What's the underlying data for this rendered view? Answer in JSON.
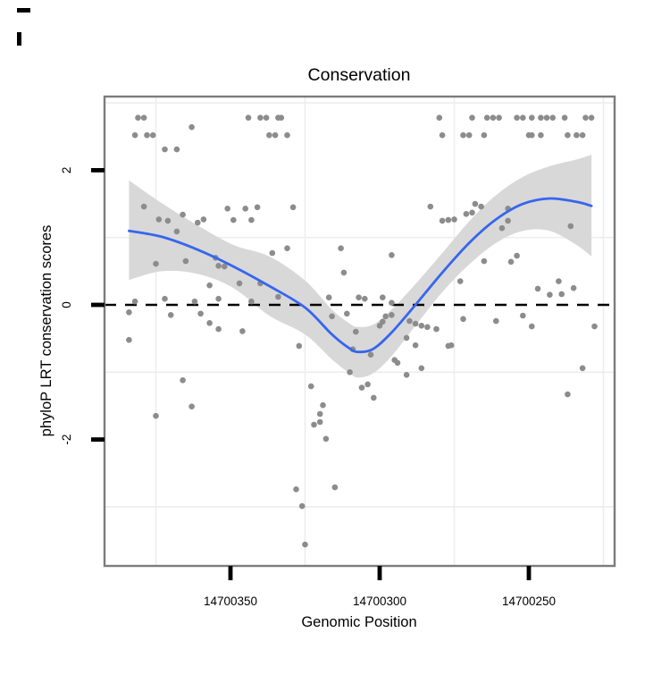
{
  "title": "Conservation",
  "chart_data": {
    "type": "scatter",
    "title": "Conservation",
    "xlabel": "Genomic Position",
    "ylabel": "phyloP LRT conservation scores",
    "x_reversed": true,
    "x_ticks": [
      14700350,
      14700300,
      14700250
    ],
    "x_tick_labels": [
      "14700350",
      "14700300",
      "14700250"
    ],
    "x_minor_ticks": [
      14700375,
      14700325,
      14700275,
      14700225
    ],
    "y_ticks": [
      2,
      0,
      -2
    ],
    "y_tick_labels": [
      "2",
      "0",
      "-2"
    ],
    "y_minor_ticks": [
      3,
      1,
      -1,
      -3
    ],
    "x_range_left_to_right": [
      14700392,
      14700221
    ],
    "y_range": [
      3.1,
      -3.9
    ],
    "hline": 0,
    "grid": "minor-only",
    "legend": "none",
    "colors": {
      "point": "#8c8c8c",
      "smooth_line": "#3666EE",
      "ribbon": "#d8d8d8",
      "dashed_line": "#000000",
      "panel_border": "#7c7c7c",
      "grid_line": "#ededed",
      "tick": "#000000",
      "background": "#ffffff"
    },
    "points": [
      [
        14700381,
        2.78
      ],
      [
        14700379,
        2.78
      ],
      [
        14700344,
        2.78
      ],
      [
        14700340,
        2.78
      ],
      [
        14700338,
        2.78
      ],
      [
        14700334,
        2.78
      ],
      [
        14700333,
        2.78
      ],
      [
        14700280,
        2.78
      ],
      [
        14700269,
        2.78
      ],
      [
        14700264,
        2.78
      ],
      [
        14700262,
        2.78
      ],
      [
        14700260,
        2.78
      ],
      [
        14700254,
        2.78
      ],
      [
        14700252,
        2.78
      ],
      [
        14700249,
        2.78
      ],
      [
        14700246,
        2.78
      ],
      [
        14700244,
        2.78
      ],
      [
        14700242,
        2.78
      ],
      [
        14700238,
        2.78
      ],
      [
        14700231,
        2.78
      ],
      [
        14700229,
        2.78
      ],
      [
        14700363,
        2.64
      ],
      [
        14700382,
        2.52
      ],
      [
        14700378,
        2.52
      ],
      [
        14700376,
        2.52
      ],
      [
        14700337,
        2.52
      ],
      [
        14700335,
        2.52
      ],
      [
        14700331,
        2.52
      ],
      [
        14700279,
        2.52
      ],
      [
        14700272,
        2.52
      ],
      [
        14700270,
        2.52
      ],
      [
        14700265,
        2.52
      ],
      [
        14700250,
        2.52
      ],
      [
        14700249,
        2.52
      ],
      [
        14700246,
        2.52
      ],
      [
        14700237,
        2.52
      ],
      [
        14700234,
        2.52
      ],
      [
        14700232,
        2.52
      ],
      [
        14700372,
        2.31
      ],
      [
        14700368,
        2.31
      ],
      [
        14700379,
        1.46
      ],
      [
        14700374,
        1.27
      ],
      [
        14700371,
        1.25
      ],
      [
        14700366,
        1.34
      ],
      [
        14700368,
        1.09
      ],
      [
        14700361,
        1.22
      ],
      [
        14700359,
        1.27
      ],
      [
        14700351,
        1.43
      ],
      [
        14700345,
        1.43
      ],
      [
        14700341,
        1.45
      ],
      [
        14700349,
        1.26
      ],
      [
        14700343,
        1.26
      ],
      [
        14700329,
        1.45
      ],
      [
        14700283,
        1.46
      ],
      [
        14700279,
        1.25
      ],
      [
        14700277,
        1.26
      ],
      [
        14700275,
        1.27
      ],
      [
        14700268,
        1.5
      ],
      [
        14700266,
        1.46
      ],
      [
        14700271,
        1.35
      ],
      [
        14700269,
        1.37
      ],
      [
        14700257,
        1.43
      ],
      [
        14700257,
        1.25
      ],
      [
        14700259,
        1.14
      ],
      [
        14700236,
        1.17
      ],
      [
        14700375,
        0.61
      ],
      [
        14700365,
        0.65
      ],
      [
        14700355,
        0.7
      ],
      [
        14700354,
        0.58
      ],
      [
        14700352,
        0.57
      ],
      [
        14700357,
        0.29
      ],
      [
        14700347,
        0.32
      ],
      [
        14700340,
        0.32
      ],
      [
        14700336,
        0.77
      ],
      [
        14700331,
        0.84
      ],
      [
        14700313,
        0.84
      ],
      [
        14700296,
        0.74
      ],
      [
        14700312,
        0.48
      ],
      [
        14700265,
        0.65
      ],
      [
        14700256,
        0.64
      ],
      [
        14700254,
        0.73
      ],
      [
        14700273,
        0.35
      ],
      [
        14700247,
        0.24
      ],
      [
        14700243,
        0.15
      ],
      [
        14700240,
        0.35
      ],
      [
        14700239,
        0.16
      ],
      [
        14700235,
        0.25
      ],
      [
        14700384,
        -0.11
      ],
      [
        14700382,
        0.05
      ],
      [
        14700372,
        0.09
      ],
      [
        14700370,
        -0.15
      ],
      [
        14700362,
        0.05
      ],
      [
        14700360,
        -0.13
      ],
      [
        14700357,
        -0.27
      ],
      [
        14700354,
        0.09
      ],
      [
        14700354,
        -0.36
      ],
      [
        14700346,
        -0.39
      ],
      [
        14700343,
        0.05
      ],
      [
        14700334,
        0.12
      ],
      [
        14700317,
        0.11
      ],
      [
        14700307,
        0.11
      ],
      [
        14700305,
        0.09
      ],
      [
        14700299,
        0.11
      ],
      [
        14700296,
        0.03
      ],
      [
        14700316,
        -0.17
      ],
      [
        14700311,
        -0.13
      ],
      [
        14700308,
        -0.4
      ],
      [
        14700300,
        -0.31
      ],
      [
        14700299,
        -0.25
      ],
      [
        14700298,
        -0.17
      ],
      [
        14700296,
        -0.15
      ],
      [
        14700290,
        -0.24
      ],
      [
        14700288,
        -0.28
      ],
      [
        14700286,
        -0.31
      ],
      [
        14700284,
        -0.33
      ],
      [
        14700281,
        -0.36
      ],
      [
        14700291,
        -0.49
      ],
      [
        14700288,
        -0.6
      ],
      [
        14700327,
        -0.61
      ],
      [
        14700309,
        -0.66
      ],
      [
        14700303,
        -0.74
      ],
      [
        14700295,
        -0.82
      ],
      [
        14700294,
        -0.86
      ],
      [
        14700310,
        -1.0
      ],
      [
        14700291,
        -1.04
      ],
      [
        14700286,
        -0.94
      ],
      [
        14700276,
        -0.6
      ],
      [
        14700272,
        -0.21
      ],
      [
        14700261,
        -0.24
      ],
      [
        14700252,
        -0.16
      ],
      [
        14700249,
        -0.32
      ],
      [
        14700228,
        -0.32
      ],
      [
        14700277,
        -0.61
      ],
      [
        14700384,
        -0.52
      ],
      [
        14700232,
        -0.94
      ],
      [
        14700237,
        -1.33
      ],
      [
        14700323,
        -1.21
      ],
      [
        14700306,
        -1.23
      ],
      [
        14700304,
        -1.18
      ],
      [
        14700302,
        -1.38
      ],
      [
        14700319,
        -1.49
      ],
      [
        14700320,
        -1.62
      ],
      [
        14700322,
        -1.78
      ],
      [
        14700320,
        -1.74
      ],
      [
        14700318,
        -1.99
      ],
      [
        14700366,
        -1.12
      ],
      [
        14700363,
        -1.51
      ],
      [
        14700375,
        -1.65
      ],
      [
        14700328,
        -2.74
      ],
      [
        14700315,
        -2.71
      ],
      [
        14700326,
        -2.99
      ],
      [
        14700325,
        -3.56
      ]
    ],
    "smooth_line": [
      [
        14700384,
        1.1
      ],
      [
        14700373,
        1.01
      ],
      [
        14700361,
        0.82
      ],
      [
        14700349,
        0.57
      ],
      [
        14700337,
        0.28
      ],
      [
        14700325,
        -0.04
      ],
      [
        14700316,
        -0.44
      ],
      [
        14700310,
        -0.65
      ],
      [
        14700307,
        -0.7
      ],
      [
        14700302,
        -0.65
      ],
      [
        14700296,
        -0.41
      ],
      [
        14700288,
        0.0
      ],
      [
        14700279,
        0.48
      ],
      [
        14700270,
        0.92
      ],
      [
        14700261,
        1.27
      ],
      [
        14700252,
        1.5
      ],
      [
        14700243,
        1.58
      ],
      [
        14700234,
        1.53
      ],
      [
        14700229,
        1.47
      ]
    ],
    "ribbon": [
      [
        14700384,
        0.37,
        1.85
      ],
      [
        14700373,
        0.5,
        1.51
      ],
      [
        14700361,
        0.46,
        1.18
      ],
      [
        14700349,
        0.25,
        0.89
      ],
      [
        14700337,
        -0.16,
        0.72
      ],
      [
        14700325,
        -0.44,
        0.36
      ],
      [
        14700316,
        -0.81,
        -0.07
      ],
      [
        14700310,
        -1.02,
        -0.28
      ],
      [
        14700307,
        -1.08,
        -0.33
      ],
      [
        14700302,
        -1.01,
        -0.29
      ],
      [
        14700296,
        -0.76,
        -0.07
      ],
      [
        14700288,
        -0.31,
        0.31
      ],
      [
        14700279,
        0.19,
        0.77
      ],
      [
        14700270,
        0.6,
        1.24
      ],
      [
        14700261,
        0.92,
        1.63
      ],
      [
        14700252,
        1.1,
        1.9
      ],
      [
        14700243,
        1.1,
        2.06
      ],
      [
        14700234,
        0.89,
        2.16
      ],
      [
        14700229,
        0.72,
        2.23
      ]
    ]
  }
}
